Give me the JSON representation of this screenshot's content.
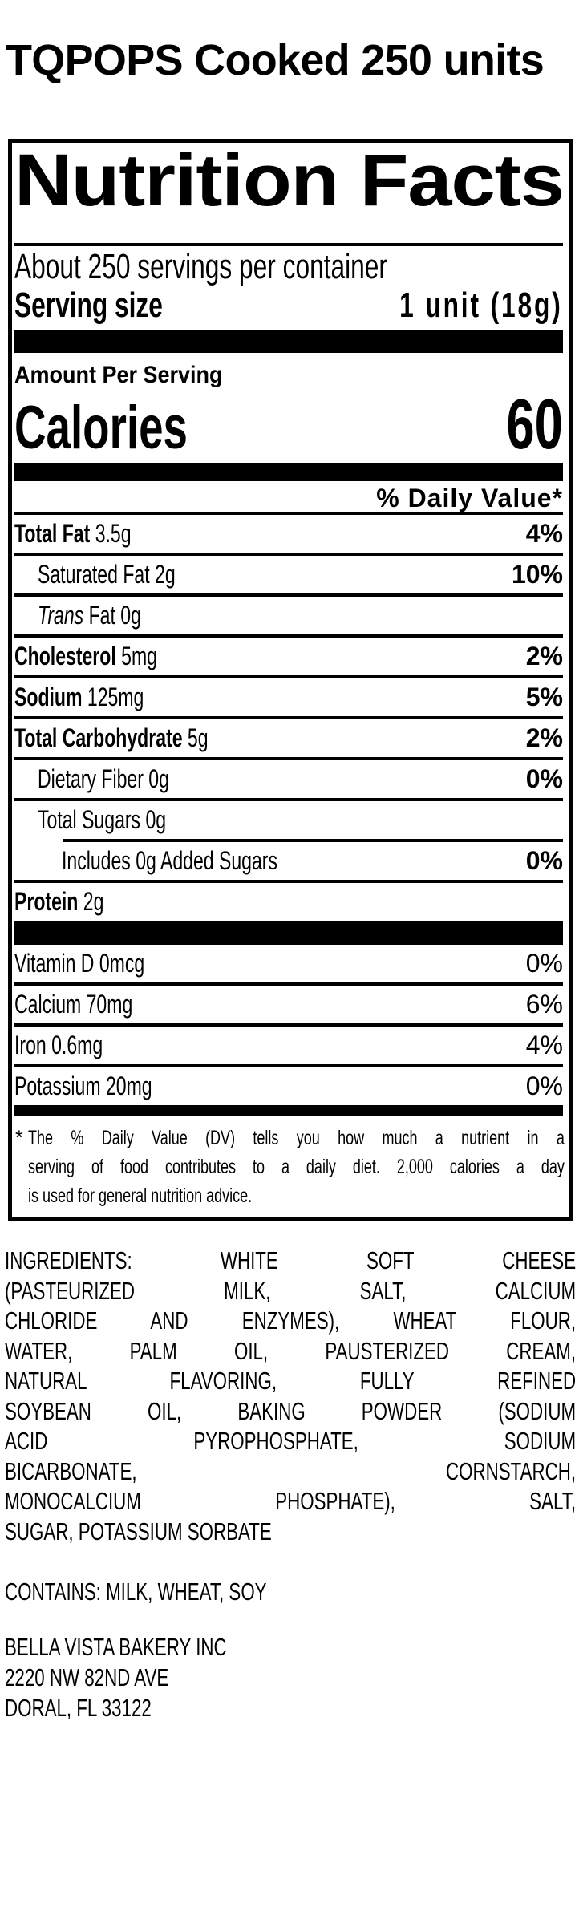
{
  "page": {
    "title": "TQPOPS Cooked 250 units"
  },
  "colors": {
    "text": "#000000",
    "background": "#ffffff"
  },
  "label": {
    "heading": "Nutrition Facts",
    "servings_per_container": "About 250 servings per container",
    "serving_size_label": "Serving size",
    "serving_size_value": "1 unit (18g)",
    "amount_per_serving": "Amount Per Serving",
    "calories_label": "Calories",
    "calories_value": "60",
    "daily_value_header": "% Daily Value*",
    "rows": [
      {
        "name_bold": "Total Fat",
        "name_rest": " 3.5g",
        "pct": "4%",
        "indent": 0
      },
      {
        "name_rest": "Saturated Fat 2g",
        "pct": "10%",
        "indent": 1
      },
      {
        "name_italic": "Trans",
        "name_rest": " Fat 0g",
        "pct": "",
        "indent": 1
      },
      {
        "name_bold": "Cholesterol",
        "name_rest": " 5mg",
        "pct": "2%",
        "indent": 0
      },
      {
        "name_bold": "Sodium",
        "name_rest": " 125mg",
        "pct": "5%",
        "indent": 0
      },
      {
        "name_bold": "Total Carbohydrate",
        "name_rest": " 5g",
        "pct": "2%",
        "indent": 0
      },
      {
        "name_rest": "Dietary Fiber 0g",
        "pct": "0%",
        "indent": 1
      },
      {
        "name_rest": "Total Sugars 0g",
        "pct": "",
        "indent": 1
      },
      {
        "name_rest": "Includes 0g Added Sugars",
        "pct": "0%",
        "indent": 2,
        "rule_indent": true
      },
      {
        "name_bold": "Protein",
        "name_rest": " 2g",
        "pct": "",
        "indent": 0
      }
    ],
    "vitamins": [
      {
        "name": "Vitamin D 0mcg",
        "pct": "0%"
      },
      {
        "name": "Calcium 70mg",
        "pct": "6%"
      },
      {
        "name": "Iron 0.6mg",
        "pct": "4%"
      },
      {
        "name": "Potassium 20mg",
        "pct": "0%"
      }
    ],
    "footnote_symbol": "*",
    "footnote_lines": [
      "The % Daily Value (DV) tells you how much a nutrient in a",
      "serving of food contributes to a daily diet. 2,000 calories a day",
      "is used for general nutrition advice."
    ]
  },
  "ingredients": {
    "lines": [
      "INGREDIENTS: WHITE SOFT CHEESE",
      "(PASTEURIZED MILK, SALT, CALCIUM",
      "CHLORIDE AND ENZYMES), WHEAT FLOUR,",
      "WATER, PALM OIL, PAUSTERIZED CREAM,",
      "NATURAL FLAVORING, FULLY REFINED",
      "SOYBEAN OIL, BAKING POWDER (SODIUM",
      "ACID PYROPHOSPHATE, SODIUM",
      "BICARBONATE, CORNSTARCH,",
      "MONOCALCIUM PHOSPHATE), SALT,",
      "SUGAR, POTASSIUM SORBATE"
    ]
  },
  "contains": "CONTAINS: MILK, WHEAT, SOY",
  "address_lines": [
    "BELLA VISTA BAKERY INC",
    "2220 NW 82ND AVE",
    "DORAL, FL 33122"
  ]
}
